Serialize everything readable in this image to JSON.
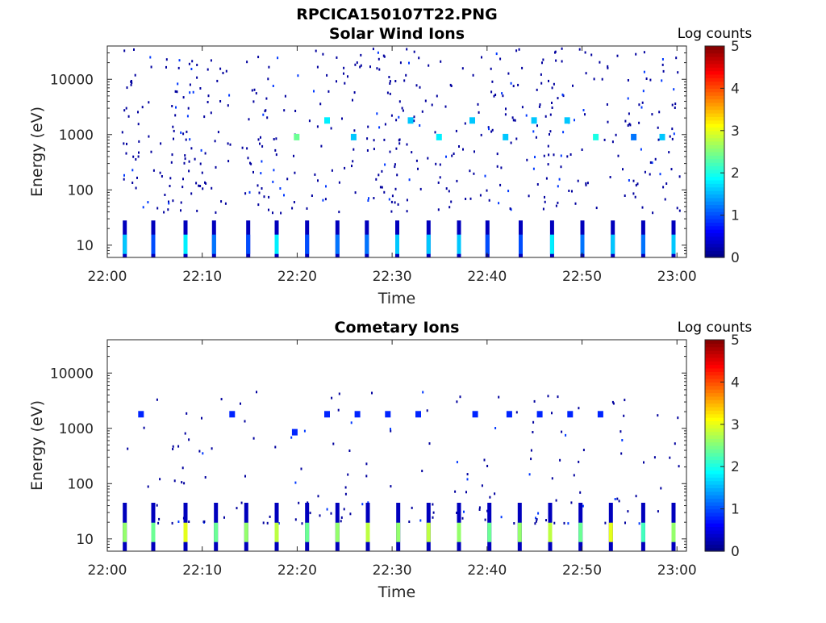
{
  "figure_title": "RPCICA150107T22.PNG",
  "chart_data": [
    {
      "type": "heatmap",
      "title": "Solar Wind Ions",
      "xlabel": "Time",
      "ylabel": "Energy (eV)",
      "yscale": "log",
      "ylim": [
        6,
        40000
      ],
      "xlim_minutes": [
        0,
        61
      ],
      "x_ticks": [
        "22:00",
        "22:10",
        "22:20",
        "22:30",
        "22:40",
        "22:50",
        "23:00"
      ],
      "x_tick_minutes": [
        0,
        10,
        20,
        30,
        40,
        50,
        60
      ],
      "y_ticks": [
        "10",
        "100",
        "1000",
        "10000"
      ],
      "y_tick_values": [
        10,
        100,
        1000,
        10000
      ],
      "colorbar": {
        "label": "Log counts",
        "min": 0,
        "max": 5,
        "ticks": [
          "0",
          "1",
          "2",
          "3",
          "4",
          "5"
        ]
      },
      "bursts": [
        {
          "t": 1.8,
          "e_lo": 6,
          "e_hi": 28,
          "level": 1.6
        },
        {
          "t": 4.8,
          "e_lo": 6,
          "e_hi": 28,
          "level": 1.0
        },
        {
          "t": 8.2,
          "e_lo": 6,
          "e_hi": 28,
          "level": 1.8
        },
        {
          "t": 11.2,
          "e_lo": 6,
          "e_hi": 28,
          "level": 1.2
        },
        {
          "t": 14.8,
          "e_lo": 6,
          "e_hi": 28,
          "level": 1.0
        },
        {
          "t": 17.8,
          "e_lo": 6,
          "e_hi": 28,
          "level": 1.8
        },
        {
          "t": 21.0,
          "e_lo": 6,
          "e_hi": 28,
          "level": 1.0
        },
        {
          "t": 24.2,
          "e_lo": 6,
          "e_hi": 28,
          "level": 1.2
        },
        {
          "t": 27.3,
          "e_lo": 6,
          "e_hi": 28,
          "level": 1.2
        },
        {
          "t": 30.5,
          "e_lo": 6,
          "e_hi": 28,
          "level": 1.6
        },
        {
          "t": 33.8,
          "e_lo": 6,
          "e_hi": 28,
          "level": 1.6
        },
        {
          "t": 37.0,
          "e_lo": 6,
          "e_hi": 28,
          "level": 1.6
        },
        {
          "t": 40.0,
          "e_lo": 6,
          "e_hi": 28,
          "level": 1.0
        },
        {
          "t": 43.5,
          "e_lo": 6,
          "e_hi": 28,
          "level": 1.0
        },
        {
          "t": 46.8,
          "e_lo": 6,
          "e_hi": 28,
          "level": 1.8
        },
        {
          "t": 50.0,
          "e_lo": 6,
          "e_hi": 28,
          "level": 1.2
        },
        {
          "t": 53.2,
          "e_lo": 6,
          "e_hi": 28,
          "level": 1.6
        },
        {
          "t": 56.4,
          "e_lo": 6,
          "e_hi": 28,
          "level": 1.2
        },
        {
          "t": 59.6,
          "e_lo": 6,
          "e_hi": 28,
          "level": 1.6
        }
      ],
      "bands": [
        {
          "t": 20.0,
          "e": 900,
          "level": 2.4
        },
        {
          "t": 23.2,
          "e": 1800,
          "level": 1.8
        },
        {
          "t": 26.0,
          "e": 900,
          "level": 1.6
        },
        {
          "t": 32.0,
          "e": 1800,
          "level": 1.6
        },
        {
          "t": 35.0,
          "e": 900,
          "level": 1.8
        },
        {
          "t": 38.5,
          "e": 1800,
          "level": 1.6
        },
        {
          "t": 42.0,
          "e": 900,
          "level": 1.6
        },
        {
          "t": 45.0,
          "e": 1800,
          "level": 1.6
        },
        {
          "t": 48.5,
          "e": 1800,
          "level": 1.6
        },
        {
          "t": 51.5,
          "e": 900,
          "level": 2.0
        },
        {
          "t": 55.5,
          "e": 900,
          "level": 1.2
        },
        {
          "t": 58.5,
          "e": 900,
          "level": 1.6
        }
      ],
      "scatter_seed": 7,
      "scatter_count": 520
    },
    {
      "type": "heatmap",
      "title": "Cometary Ions",
      "xlabel": "Time",
      "ylabel": "Energy (eV)",
      "yscale": "log",
      "ylim": [
        6,
        40000
      ],
      "xlim_minutes": [
        0,
        61
      ],
      "x_ticks": [
        "22:00",
        "22:10",
        "22:20",
        "22:30",
        "22:40",
        "22:50",
        "23:00"
      ],
      "x_tick_minutes": [
        0,
        10,
        20,
        30,
        40,
        50,
        60
      ],
      "y_ticks": [
        "10",
        "100",
        "1000",
        "10000"
      ],
      "y_tick_values": [
        10,
        100,
        1000,
        10000
      ],
      "colorbar": {
        "label": "Log counts",
        "min": 0,
        "max": 5,
        "ticks": [
          "0",
          "1",
          "2",
          "3",
          "4",
          "5"
        ]
      },
      "bursts": [
        {
          "t": 1.8,
          "e_lo": 6,
          "e_hi": 45,
          "level": 2.6
        },
        {
          "t": 4.8,
          "e_lo": 6,
          "e_hi": 45,
          "level": 2.4
        },
        {
          "t": 8.2,
          "e_lo": 6,
          "e_hi": 45,
          "level": 3.0
        },
        {
          "t": 11.4,
          "e_lo": 6,
          "e_hi": 45,
          "level": 2.4
        },
        {
          "t": 14.6,
          "e_lo": 6,
          "e_hi": 45,
          "level": 2.6
        },
        {
          "t": 17.8,
          "e_lo": 6,
          "e_hi": 45,
          "level": 2.8
        },
        {
          "t": 21.0,
          "e_lo": 6,
          "e_hi": 45,
          "level": 2.4
        },
        {
          "t": 24.2,
          "e_lo": 6,
          "e_hi": 45,
          "level": 2.6
        },
        {
          "t": 27.4,
          "e_lo": 6,
          "e_hi": 45,
          "level": 2.8
        },
        {
          "t": 30.6,
          "e_lo": 6,
          "e_hi": 45,
          "level": 2.6
        },
        {
          "t": 33.8,
          "e_lo": 6,
          "e_hi": 45,
          "level": 2.8
        },
        {
          "t": 37.0,
          "e_lo": 6,
          "e_hi": 45,
          "level": 2.6
        },
        {
          "t": 40.2,
          "e_lo": 6,
          "e_hi": 45,
          "level": 2.4
        },
        {
          "t": 43.4,
          "e_lo": 6,
          "e_hi": 45,
          "level": 2.6
        },
        {
          "t": 46.6,
          "e_lo": 6,
          "e_hi": 45,
          "level": 2.8
        },
        {
          "t": 49.8,
          "e_lo": 6,
          "e_hi": 45,
          "level": 2.4
        },
        {
          "t": 53.0,
          "e_lo": 6,
          "e_hi": 45,
          "level": 3.0
        },
        {
          "t": 56.4,
          "e_lo": 6,
          "e_hi": 45,
          "level": 2.2
        },
        {
          "t": 59.6,
          "e_lo": 6,
          "e_hi": 45,
          "level": 2.6
        }
      ],
      "bands": [
        {
          "t": 3.6,
          "e": 1800,
          "level": 0.8
        },
        {
          "t": 13.2,
          "e": 1800,
          "level": 0.8
        },
        {
          "t": 19.8,
          "e": 850,
          "level": 0.8
        },
        {
          "t": 23.2,
          "e": 1800,
          "level": 0.8
        },
        {
          "t": 26.4,
          "e": 1800,
          "level": 0.8
        },
        {
          "t": 29.6,
          "e": 1800,
          "level": 0.8
        },
        {
          "t": 32.8,
          "e": 1800,
          "level": 0.8
        },
        {
          "t": 38.8,
          "e": 1800,
          "level": 0.8
        },
        {
          "t": 42.4,
          "e": 1800,
          "level": 0.8
        },
        {
          "t": 45.6,
          "e": 1800,
          "level": 0.8
        },
        {
          "t": 48.8,
          "e": 1800,
          "level": 0.8
        },
        {
          "t": 52.0,
          "e": 1800,
          "level": 0.8
        }
      ],
      "scatter_seed": 13,
      "scatter_count": 170
    }
  ]
}
